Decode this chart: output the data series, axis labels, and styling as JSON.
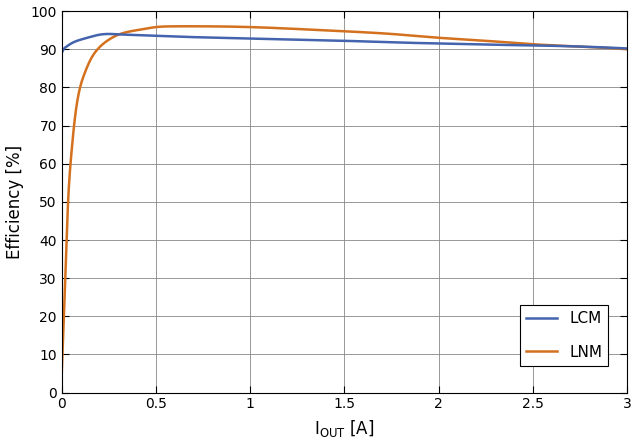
{
  "xlabel": "I$_{OUT}$ [A]",
  "ylabel": "Efficiency [%]",
  "xlim": [
    0,
    3
  ],
  "ylim": [
    0,
    100
  ],
  "xticks": [
    0,
    0.5,
    1.0,
    1.5,
    2.0,
    2.5,
    3.0
  ],
  "yticks": [
    0,
    10,
    20,
    30,
    40,
    50,
    60,
    70,
    80,
    90,
    100
  ],
  "lcm_color": "#4464ae",
  "lnm_color": "#d4711e",
  "linewidth": 1.8,
  "legend_labels": [
    "LCM",
    "LNM"
  ],
  "background_color": "#ffffff",
  "grid_color": "#888888",
  "figsize": [
    6.37,
    4.45
  ],
  "dpi": 100
}
